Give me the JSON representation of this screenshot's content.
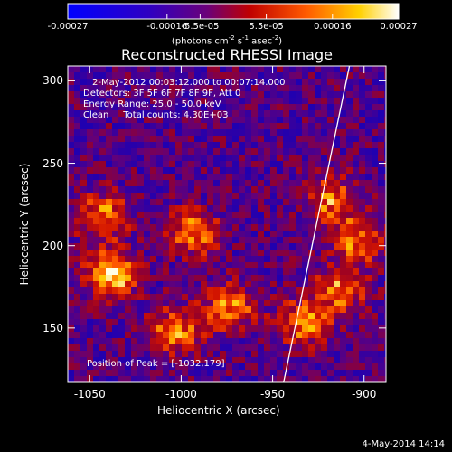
{
  "colorbar": {
    "ticks": [
      "-0.00027",
      "-0.00016",
      "-5.5e-05",
      "5.5e-05",
      "0.00016",
      "0.00027"
    ],
    "unit_prefix": "(photons cm",
    "unit_exp1": "-2",
    "unit_mid1": " s",
    "unit_exp2": "-1",
    "unit_mid2": " asec",
    "unit_exp3": "-2",
    "unit_suffix": ")"
  },
  "chart_data": {
    "type": "heatmap",
    "title": "Reconstructed RHESSI Image",
    "xlabel": "Heliocentric X (arcsec)",
    "ylabel": "Heliocentric Y (arcsec)",
    "xlim": [
      -1062,
      -888
    ],
    "ylim": [
      117,
      309
    ],
    "xticks": [
      -1050,
      -1000,
      -950,
      -900
    ],
    "yticks": [
      150,
      200,
      250,
      300
    ],
    "colorbar_range": [
      -0.00027,
      0.00027
    ],
    "colormap": "blue-purple-red-orange-yellow-white",
    "limb_line": [
      [
        -944,
        117
      ],
      [
        -908,
        309
      ]
    ],
    "peak_position": [
      -1032,
      179
    ],
    "hot_regions": [
      {
        "x": -1040,
        "y": 185,
        "label": "bright"
      },
      {
        "x": -1045,
        "y": 220
      },
      {
        "x": -975,
        "y": 165
      },
      {
        "x": -995,
        "y": 210
      },
      {
        "x": -1005,
        "y": 150
      },
      {
        "x": -915,
        "y": 175
      },
      {
        "x": -905,
        "y": 205
      },
      {
        "x": -920,
        "y": 230
      },
      {
        "x": -935,
        "y": 155
      }
    ]
  },
  "annotations": {
    "line1": "2-May-2012 00:03:12.000 to 00:07:14.000",
    "line2": "Detectors: 3F 5F 6F 7F 8F 9F, Att 0",
    "line3": "Energy Range: 25.0 - 50.0 keV",
    "line4": "Clean     Total counts: 4.30E+03",
    "peak": "Position of Peak = [-1032,179]"
  },
  "footer_date": "4-May-2014 14:14"
}
